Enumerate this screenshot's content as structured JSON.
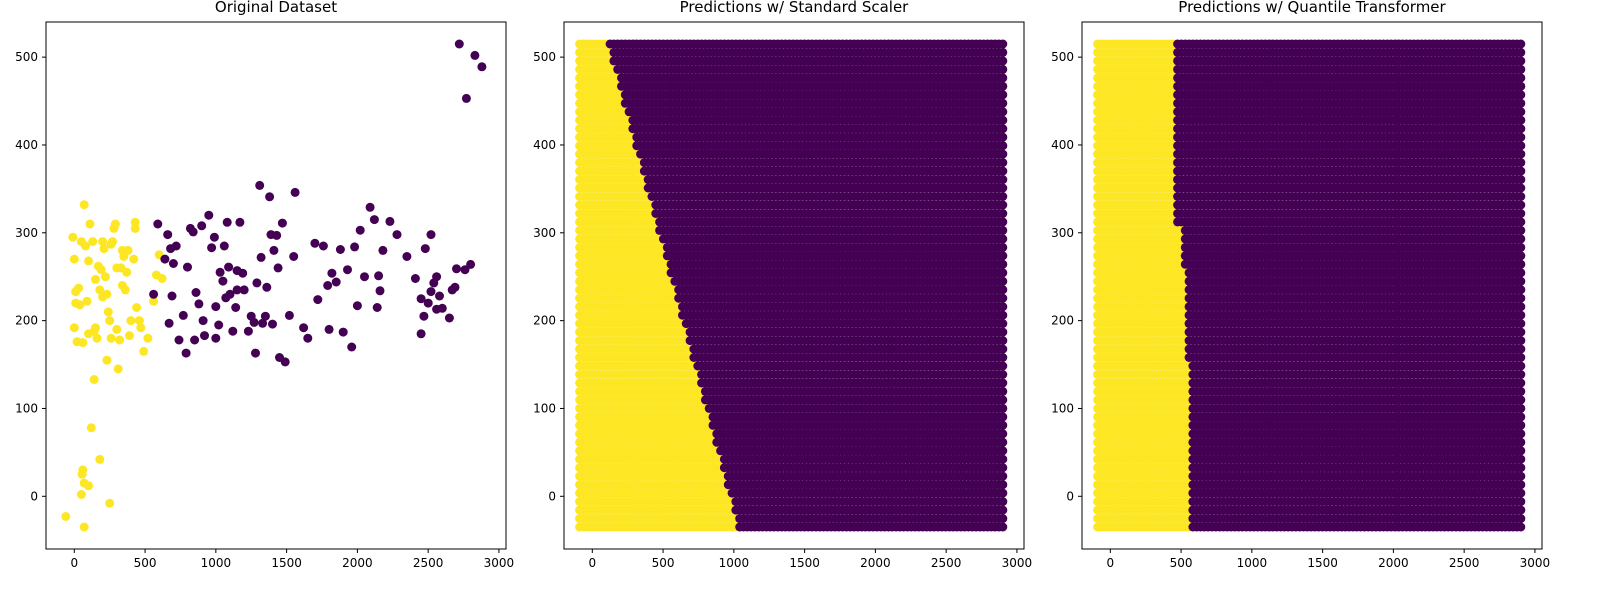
{
  "colors": {
    "class_0": "#440154",
    "class_1": "#fde725",
    "axes": "#000000",
    "background": "#ffffff"
  },
  "chart_data": [
    {
      "type": "scatter",
      "title": "Original Dataset",
      "xlabel": "",
      "ylabel": "",
      "xlim": [
        -200,
        3050
      ],
      "ylim": [
        -60,
        540
      ],
      "x_ticks": [
        0,
        500,
        1000,
        1500,
        2000,
        2500,
        3000
      ],
      "y_ticks": [
        0,
        100,
        200,
        300,
        400,
        500
      ],
      "grid": false,
      "legend": "none",
      "series": [
        {
          "class": 1,
          "points": [
            [
              -60,
              -23
            ],
            [
              70,
              -35
            ],
            [
              50,
              2
            ],
            [
              250,
              -8
            ],
            [
              100,
              12
            ],
            [
              70,
              15
            ],
            [
              55,
              25
            ],
            [
              60,
              30
            ],
            [
              180,
              42
            ],
            [
              120,
              78
            ],
            [
              140,
              133
            ],
            [
              0,
              192
            ],
            [
              10,
              220
            ],
            [
              20,
              176
            ],
            [
              -10,
              295
            ],
            [
              0,
              270
            ],
            [
              10,
              233
            ],
            [
              30,
              237
            ],
            [
              40,
              218
            ],
            [
              60,
              175
            ],
            [
              70,
              332
            ],
            [
              80,
              285
            ],
            [
              90,
              222
            ],
            [
              100,
              268
            ],
            [
              110,
              310
            ],
            [
              130,
              290
            ],
            [
              140,
              188
            ],
            [
              150,
              192
            ],
            [
              160,
              180
            ],
            [
              170,
              262
            ],
            [
              180,
              235
            ],
            [
              190,
              258
            ],
            [
              200,
              290
            ],
            [
              210,
              282
            ],
            [
              220,
              250
            ],
            [
              230,
              230
            ],
            [
              240,
              210
            ],
            [
              250,
              200
            ],
            [
              260,
              180
            ],
            [
              270,
              290
            ],
            [
              280,
              305
            ],
            [
              290,
              310
            ],
            [
              300,
              190
            ],
            [
              310,
              145
            ],
            [
              320,
              178
            ],
            [
              330,
              260
            ],
            [
              340,
              280
            ],
            [
              350,
              273
            ],
            [
              360,
              235
            ],
            [
              370,
              255
            ],
            [
              380,
              280
            ],
            [
              400,
              200
            ],
            [
              420,
              270
            ],
            [
              430,
              305
            ],
            [
              440,
              215
            ],
            [
              460,
              200
            ],
            [
              470,
              192
            ],
            [
              490,
              165
            ],
            [
              520,
              180
            ],
            [
              560,
              222
            ],
            [
              580,
              252
            ],
            [
              600,
              275
            ],
            [
              620,
              248
            ],
            [
              230,
              155
            ],
            [
              260,
              287
            ],
            [
              150,
              247
            ],
            [
              200,
              227
            ],
            [
              300,
              260
            ],
            [
              340,
              240
            ],
            [
              390,
              183
            ],
            [
              430,
              312
            ],
            [
              100,
              185
            ],
            [
              50,
              290
            ]
          ]
        },
        {
          "class": 0,
          "points": [
            [
              560,
              230
            ],
            [
              590,
              310
            ],
            [
              640,
              270
            ],
            [
              660,
              298
            ],
            [
              670,
              197
            ],
            [
              690,
              228
            ],
            [
              700,
              265
            ],
            [
              720,
              285
            ],
            [
              740,
              178
            ],
            [
              770,
              206
            ],
            [
              790,
              163
            ],
            [
              800,
              261
            ],
            [
              820,
              305
            ],
            [
              840,
              301
            ],
            [
              850,
              178
            ],
            [
              860,
              232
            ],
            [
              880,
              219
            ],
            [
              900,
              308
            ],
            [
              910,
              200
            ],
            [
              920,
              183
            ],
            [
              950,
              320
            ],
            [
              970,
              283
            ],
            [
              990,
              295
            ],
            [
              1000,
              216
            ],
            [
              1020,
              195
            ],
            [
              1030,
              255
            ],
            [
              1050,
              245
            ],
            [
              1060,
              285
            ],
            [
              1080,
              312
            ],
            [
              1090,
              261
            ],
            [
              1100,
              230
            ],
            [
              1120,
              188
            ],
            [
              1140,
              215
            ],
            [
              1150,
              257
            ],
            [
              1170,
              312
            ],
            [
              1190,
              254
            ],
            [
              1200,
              235
            ],
            [
              1230,
              188
            ],
            [
              1250,
              205
            ],
            [
              1270,
              198
            ],
            [
              1280,
              163
            ],
            [
              1290,
              243
            ],
            [
              1310,
              354
            ],
            [
              1330,
              197
            ],
            [
              1350,
              205
            ],
            [
              1360,
              238
            ],
            [
              1380,
              341
            ],
            [
              1390,
              298
            ],
            [
              1400,
              196
            ],
            [
              1410,
              280
            ],
            [
              1430,
              297
            ],
            [
              1440,
              260
            ],
            [
              1450,
              158
            ],
            [
              1470,
              311
            ],
            [
              1490,
              153
            ],
            [
              1520,
              206
            ],
            [
              1550,
              273
            ],
            [
              1560,
              346
            ],
            [
              1620,
              192
            ],
            [
              1650,
              180
            ],
            [
              1700,
              288
            ],
            [
              1720,
              224
            ],
            [
              1760,
              285
            ],
            [
              1790,
              240
            ],
            [
              1800,
              190
            ],
            [
              1820,
              254
            ],
            [
              1850,
              244
            ],
            [
              1880,
              281
            ],
            [
              1900,
              187
            ],
            [
              1930,
              258
            ],
            [
              1960,
              170
            ],
            [
              1980,
              284
            ],
            [
              2000,
              217
            ],
            [
              2020,
              303
            ],
            [
              2090,
              329
            ],
            [
              2120,
              315
            ],
            [
              2140,
              215
            ],
            [
              2150,
              251
            ],
            [
              2160,
              234
            ],
            [
              2180,
              280
            ],
            [
              2230,
              313
            ],
            [
              2280,
              298
            ],
            [
              2350,
              273
            ],
            [
              2410,
              248
            ],
            [
              2450,
              225
            ],
            [
              2480,
              282
            ],
            [
              2500,
              220
            ],
            [
              2520,
              298
            ],
            [
              2540,
              243
            ],
            [
              2560,
              250
            ],
            [
              2580,
              228
            ],
            [
              2600,
              214
            ],
            [
              2650,
              203
            ],
            [
              2670,
              235
            ],
            [
              2690,
              238
            ],
            [
              2700,
              259
            ],
            [
              2720,
              515
            ],
            [
              2760,
              258
            ],
            [
              2770,
              453
            ],
            [
              2800,
              264
            ],
            [
              2830,
              502
            ],
            [
              2880,
              489
            ],
            [
              2450,
              185
            ],
            [
              2470,
              205
            ],
            [
              2520,
              233
            ],
            [
              2560,
              213
            ],
            [
              1000,
              180
            ],
            [
              1320,
              272
            ],
            [
              1150,
              235
            ],
            [
              1070,
              226
            ],
            [
              680,
              282
            ],
            [
              2050,
              250
            ]
          ]
        }
      ]
    },
    {
      "type": "scatter",
      "title": "Predictions w/ Standard Scaler",
      "xlabel": "",
      "ylabel": "",
      "xlim": [
        -200,
        3050
      ],
      "ylim": [
        -60,
        540
      ],
      "x_ticks": [
        0,
        500,
        1000,
        1500,
        2000,
        2500,
        3000
      ],
      "y_ticks": [
        0,
        100,
        200,
        300,
        400,
        500
      ],
      "grid": false,
      "legend": "none",
      "grid_x_range": [
        -90,
        2900
      ],
      "grid_y_range": [
        -35,
        515
      ],
      "boundary": [
        [
          1040,
          -35
        ],
        [
          120,
          515
        ]
      ],
      "left_class": 1,
      "right_class": 0
    },
    {
      "type": "scatter",
      "title": "Predictions w/ Quantile Transformer",
      "xlabel": "",
      "ylabel": "",
      "xlim": [
        -200,
        3050
      ],
      "ylim": [
        -60,
        540
      ],
      "x_ticks": [
        0,
        500,
        1000,
        1500,
        2000,
        2500,
        3000
      ],
      "y_ticks": [
        0,
        100,
        200,
        300,
        400,
        500
      ],
      "grid": false,
      "legend": "none",
      "grid_x_range": [
        -90,
        2900
      ],
      "grid_y_range": [
        -35,
        515
      ],
      "boundary_steps": [
        [
          -35,
          150,
          570
        ],
        [
          150,
          255,
          540
        ],
        [
          255,
          305,
          510
        ],
        [
          305,
          515,
          475
        ]
      ],
      "left_class": 1,
      "right_class": 0
    }
  ]
}
